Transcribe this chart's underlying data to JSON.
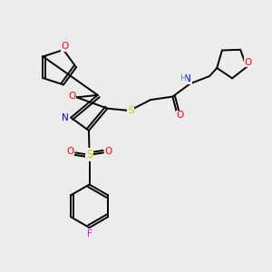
{
  "background_color": "#ececec",
  "figsize": [
    3.0,
    3.0
  ],
  "dpi": 100,
  "atom_colors": {
    "O": "#ff0000",
    "N": "#0000cd",
    "S": "#cccc00",
    "F": "#ff00ff",
    "C": "#000000",
    "H": "#3a9898"
  }
}
